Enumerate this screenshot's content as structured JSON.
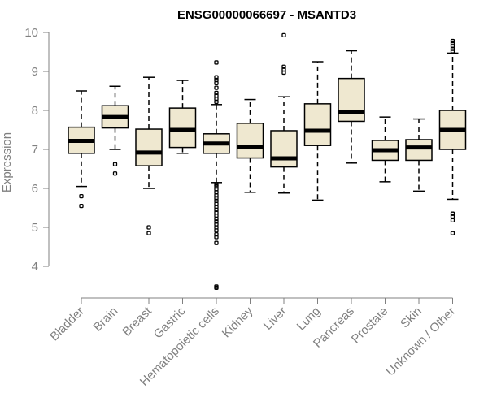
{
  "chart_data": {
    "type": "boxplot",
    "title": "ENSG00000066697 - MSANTD3",
    "ylabel": "Expression",
    "xlabel": "",
    "ylim": [
      3.4,
      10.1
    ],
    "yticks": [
      4,
      5,
      6,
      7,
      8,
      9,
      10
    ],
    "colors": {
      "box_fill": "#efe8d0",
      "axis": "#808080"
    },
    "categories": [
      "Bladder",
      "Brain",
      "Breast",
      "Gastric",
      "Hematopoietic cells",
      "Kidney",
      "Liver",
      "Lung",
      "Pancreas",
      "Prostate",
      "Skin",
      "Unknown / Other"
    ],
    "boxes": [
      {
        "category": "Bladder",
        "whisker_low": 6.05,
        "q1": 6.9,
        "median": 7.22,
        "q3": 7.57,
        "whisker_high": 8.5,
        "outliers": [
          5.8,
          5.55
        ]
      },
      {
        "category": "Brain",
        "whisker_low": 7.0,
        "q1": 7.55,
        "median": 7.83,
        "q3": 8.12,
        "whisker_high": 8.62,
        "outliers": [
          6.62,
          6.38
        ]
      },
      {
        "category": "Breast",
        "whisker_low": 6.0,
        "q1": 6.58,
        "median": 6.92,
        "q3": 7.52,
        "whisker_high": 8.85,
        "outliers": [
          5.0,
          4.85
        ]
      },
      {
        "category": "Gastric",
        "whisker_low": 6.9,
        "q1": 7.05,
        "median": 7.5,
        "q3": 8.06,
        "whisker_high": 8.77,
        "outliers": []
      },
      {
        "category": "Hematopoietic cells",
        "whisker_low": 6.15,
        "q1": 6.9,
        "median": 7.15,
        "q3": 7.4,
        "whisker_high": 8.15,
        "outliers": [
          9.23,
          8.85,
          8.78,
          8.7,
          8.58,
          8.45,
          8.38,
          8.3,
          8.22,
          6.1,
          6.05,
          5.98,
          5.9,
          5.82,
          5.75,
          5.68,
          5.6,
          5.52,
          5.45,
          5.38,
          5.3,
          5.22,
          5.15,
          5.08,
          5.0,
          4.92,
          4.82,
          4.75,
          4.6,
          3.48,
          3.45
        ]
      },
      {
        "category": "Kidney",
        "whisker_low": 5.9,
        "q1": 6.78,
        "median": 7.07,
        "q3": 7.67,
        "whisker_high": 8.28,
        "outliers": []
      },
      {
        "category": "Liver",
        "whisker_low": 5.88,
        "q1": 6.55,
        "median": 6.77,
        "q3": 7.48,
        "whisker_high": 8.35,
        "outliers": [
          9.93,
          9.12,
          9.05,
          8.97
        ]
      },
      {
        "category": "Lung",
        "whisker_low": 5.7,
        "q1": 7.1,
        "median": 7.48,
        "q3": 8.17,
        "whisker_high": 9.25,
        "outliers": []
      },
      {
        "category": "Pancreas",
        "whisker_low": 6.65,
        "q1": 7.72,
        "median": 7.97,
        "q3": 8.82,
        "whisker_high": 9.53,
        "outliers": []
      },
      {
        "category": "Prostate",
        "whisker_low": 6.17,
        "q1": 6.72,
        "median": 6.98,
        "q3": 7.23,
        "whisker_high": 7.83,
        "outliers": []
      },
      {
        "category": "Skin",
        "whisker_low": 5.93,
        "q1": 6.72,
        "median": 7.05,
        "q3": 7.25,
        "whisker_high": 7.78,
        "outliers": []
      },
      {
        "category": "Unknown / Other",
        "whisker_low": 5.72,
        "q1": 7.0,
        "median": 7.5,
        "q3": 8.0,
        "whisker_high": 9.47,
        "outliers": [
          9.78,
          9.72,
          9.65,
          9.58,
          9.52,
          5.35,
          5.28,
          5.18,
          4.85
        ]
      }
    ]
  }
}
